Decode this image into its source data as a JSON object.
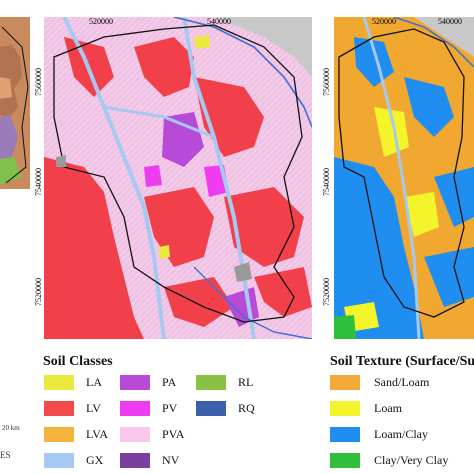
{
  "middle_map": {
    "x_ticks": [
      "520000",
      "540000"
    ],
    "y_ticks": [
      "7560000",
      "7540000",
      "7520000"
    ]
  },
  "right_map": {
    "x_ticks": [
      "520000",
      "540000"
    ],
    "y_ticks": [
      "7560000",
      "7540000",
      "7520000"
    ]
  },
  "soil_classes": {
    "title": "Soil Classes",
    "items": [
      {
        "code": "LA",
        "color": "#e9ea3c"
      },
      {
        "code": "LV",
        "color": "#f24a4a"
      },
      {
        "code": "LVA",
        "color": "#f5b23c"
      },
      {
        "code": "GX",
        "color": "#a5c9f2"
      },
      {
        "code": "PA",
        "color": "#b84ad8"
      },
      {
        "code": "PV",
        "color": "#ef3cf0"
      },
      {
        "code": "PVA",
        "color": "#f7c8ea"
      },
      {
        "code": "NV",
        "color": "#7b3fa0"
      },
      {
        "code": "RL",
        "color": "#8ac043"
      },
      {
        "code": "RQ",
        "color": "#3b5fa8"
      }
    ]
  },
  "soil_texture": {
    "title": "Soil Texture (Surface/Su",
    "items": [
      {
        "label": "Sand/Loam",
        "color": "#f5a93a"
      },
      {
        "label": "Loam",
        "color": "#f4f42a"
      },
      {
        "label": "Loam/Clay",
        "color": "#1f8ef0"
      },
      {
        "label": "Clay/Very Clay",
        "color": "#2fbf3a"
      }
    ]
  },
  "left_fragment": {
    "scale_text": "20 km",
    "fragment_text": "ES"
  }
}
